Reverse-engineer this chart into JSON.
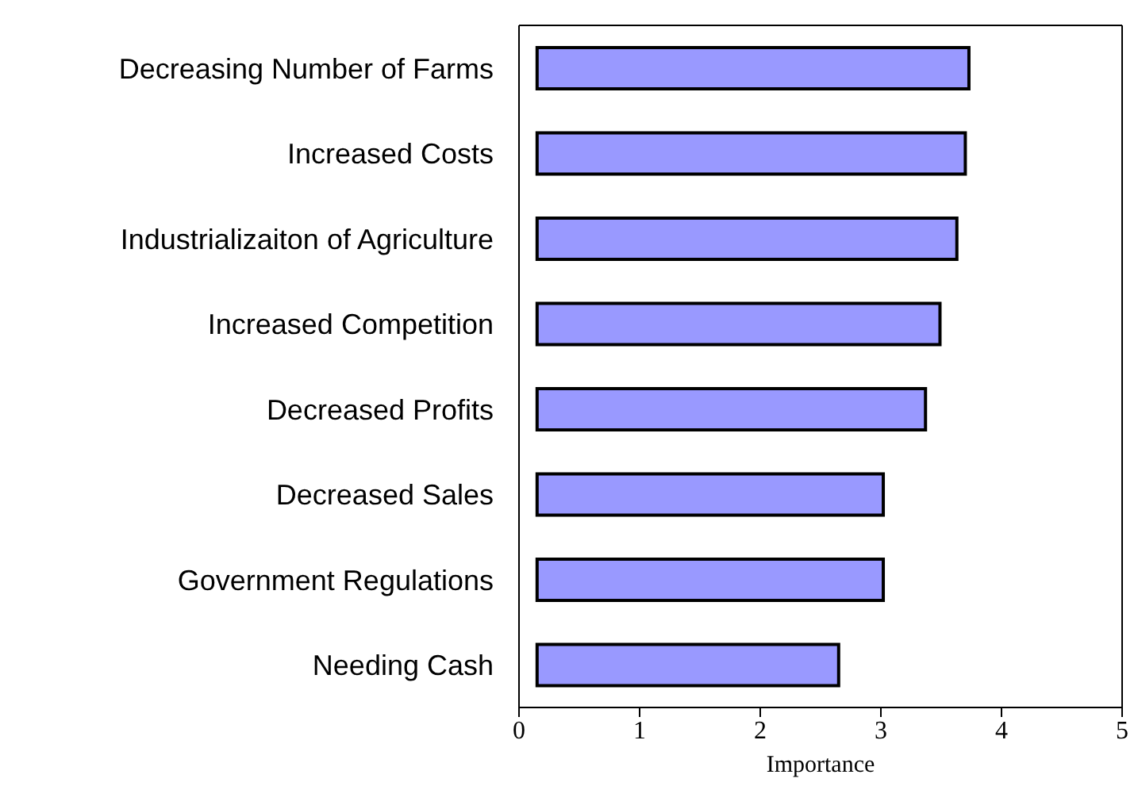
{
  "chart_data": {
    "type": "bar",
    "orientation": "horizontal",
    "xlabel": "Importance",
    "categories": [
      "Decreasing Number of Farms",
      "Increased Costs",
      "Industrializaiton of Agriculture",
      "Increased Competition",
      "Decreased Profits",
      "Decreased Sales",
      "Government Regulations",
      "Needing Cash"
    ],
    "values": [
      3.58,
      3.55,
      3.48,
      3.34,
      3.22,
      2.87,
      2.87,
      2.5
    ],
    "base": [
      0.15,
      0.15,
      0.15,
      0.15,
      0.15,
      0.15,
      0.15,
      0.15
    ],
    "color": "#9999ff",
    "xlim": [
      0,
      5
    ],
    "xticks": [
      0,
      1,
      2,
      3,
      4,
      5
    ]
  }
}
